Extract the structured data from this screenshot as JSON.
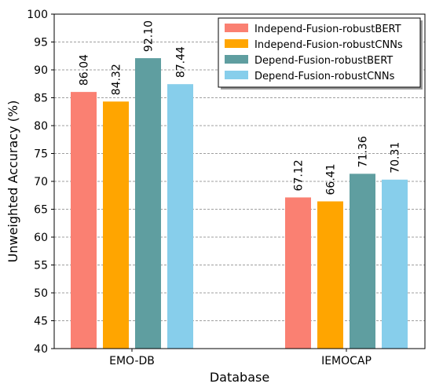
{
  "chart_data": {
    "type": "bar",
    "xlabel": "Database",
    "ylabel": "Unweighted Accuracy (%)",
    "ylim": [
      40,
      100
    ],
    "yticks": [
      40,
      45,
      50,
      55,
      60,
      65,
      70,
      75,
      80,
      85,
      90,
      95,
      100
    ],
    "grid": "horizontal dashed",
    "legend_position": "top-right",
    "categories": [
      "EMO-DB",
      "IEMOCAP"
    ],
    "series": [
      {
        "name": "Independ-Fusion-robustBERT",
        "color": "#FA8072",
        "values": [
          86.04,
          67.12
        ],
        "labels": [
          "86.04",
          "67.12"
        ]
      },
      {
        "name": "Independ-Fusion-robustCNNs",
        "color": "#FFA500",
        "values": [
          84.32,
          66.41
        ],
        "labels": [
          "84.32",
          "66.41"
        ]
      },
      {
        "name": "Depend-Fusion-robustBERT",
        "color": "#5F9EA0",
        "values": [
          92.1,
          71.36
        ],
        "labels": [
          "92.10",
          "71.36"
        ]
      },
      {
        "name": "Depend-Fusion-robustCNNs",
        "color": "#87CEEB",
        "values": [
          87.44,
          70.31
        ],
        "labels": [
          "87.44",
          "70.31"
        ]
      }
    ]
  }
}
